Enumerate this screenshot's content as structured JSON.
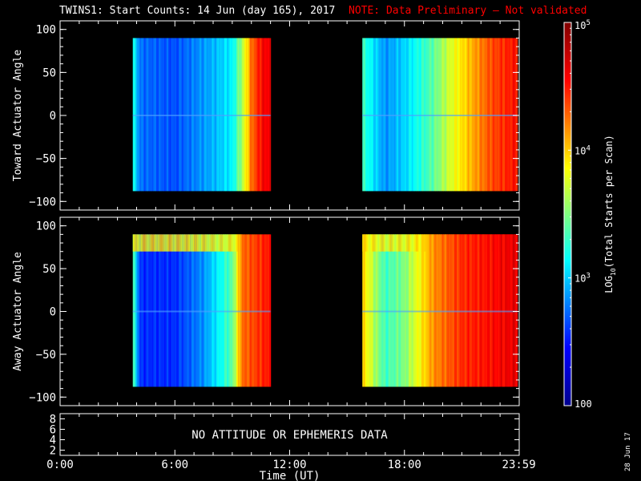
{
  "title": "TWINS1: Start Counts: 14 Jun (day 165), 2017",
  "note": "NOTE: Data Preliminary — Not validated",
  "date_stamp": "28 Jun 17",
  "colors": {
    "background": "#000000",
    "axes": "#ffffff",
    "note": "#ff0000"
  },
  "chart_data": [
    {
      "type": "heatmap",
      "panel": "toward",
      "ylabel": "Toward Actuator Angle",
      "ylim": [
        -110,
        110
      ],
      "yticks": [
        "100",
        "50",
        "0",
        "−50",
        "−100"
      ],
      "ytick_values": [
        100,
        50,
        0,
        -50,
        -100
      ],
      "xlim": [
        0,
        24
      ],
      "data_time_ranges_hours": [
        [
          3.8,
          11.0
        ],
        [
          15.8,
          23.9
        ]
      ],
      "angle_range": [
        -88,
        90
      ],
      "log10_counts_profile": [
        {
          "t": 3.8,
          "v": 3.2
        },
        {
          "t": 4.2,
          "v": 2.7
        },
        {
          "t": 6.0,
          "v": 2.6
        },
        {
          "t": 8.0,
          "v": 2.9
        },
        {
          "t": 9.0,
          "v": 3.1
        },
        {
          "t": 9.5,
          "v": 3.6
        },
        {
          "t": 10.0,
          "v": 4.3
        },
        {
          "t": 10.5,
          "v": 4.6
        },
        {
          "t": 11.0,
          "v": 4.7
        },
        {
          "t": 15.8,
          "v": 3.3
        },
        {
          "t": 17.0,
          "v": 2.8
        },
        {
          "t": 18.0,
          "v": 3.0
        },
        {
          "t": 19.5,
          "v": 3.4
        },
        {
          "t": 20.5,
          "v": 3.8
        },
        {
          "t": 21.5,
          "v": 4.1
        },
        {
          "t": 22.5,
          "v": 4.4
        },
        {
          "t": 23.9,
          "v": 4.6
        }
      ]
    },
    {
      "type": "heatmap",
      "panel": "away",
      "ylabel": "Away Actuator Angle",
      "ylim": [
        -110,
        110
      ],
      "yticks": [
        "100",
        "50",
        "0",
        "−50",
        "−100"
      ],
      "ytick_values": [
        100,
        50,
        0,
        -50,
        -100
      ],
      "xlim": [
        0,
        24
      ],
      "data_time_ranges_hours": [
        [
          3.8,
          11.0
        ],
        [
          15.8,
          23.9
        ]
      ],
      "angle_range": [
        -88,
        90
      ],
      "high_angle_band": [
        70,
        90
      ],
      "log10_counts_profile": [
        {
          "t": 3.8,
          "v": 3.4
        },
        {
          "t": 4.2,
          "v": 2.5
        },
        {
          "t": 6.0,
          "v": 2.5
        },
        {
          "t": 7.5,
          "v": 2.8
        },
        {
          "t": 9.0,
          "v": 3.4
        },
        {
          "t": 9.5,
          "v": 4.3
        },
        {
          "t": 10.5,
          "v": 4.5
        },
        {
          "t": 11.0,
          "v": 4.6
        },
        {
          "t": 15.8,
          "v": 4.0
        },
        {
          "t": 17.0,
          "v": 3.3
        },
        {
          "t": 18.0,
          "v": 3.5
        },
        {
          "t": 19.5,
          "v": 4.2
        },
        {
          "t": 21.0,
          "v": 4.5
        },
        {
          "t": 23.9,
          "v": 4.7
        }
      ]
    },
    {
      "type": "line",
      "panel": "ephemeris",
      "yticks": [
        "8",
        "6",
        "4",
        "2"
      ],
      "ytick_values": [
        8,
        6,
        4,
        2
      ],
      "ylim": [
        1,
        9
      ],
      "message": "NO ATTITUDE OR EPHEMERIS DATA"
    }
  ],
  "x_axis": {
    "label": "Time (UT)",
    "ticks": [
      "0:00",
      "6:00",
      "12:00",
      "18:00",
      "23:59"
    ],
    "tick_values": [
      0,
      6,
      12,
      18,
      23.983
    ]
  },
  "colorbar": {
    "label": "LOG10(Total Starts per Scan)",
    "label_parts": [
      "LOG",
      "10",
      "(Total Starts per Scan)"
    ],
    "range_log10": [
      2,
      5
    ],
    "tick_labels": [
      {
        "value": 5,
        "base": "10",
        "exp": "5"
      },
      {
        "value": 4,
        "base": "10",
        "exp": "4"
      },
      {
        "value": 3,
        "base": "10",
        "exp": "3"
      },
      {
        "value": 2,
        "base": "100",
        "exp": ""
      }
    ]
  }
}
